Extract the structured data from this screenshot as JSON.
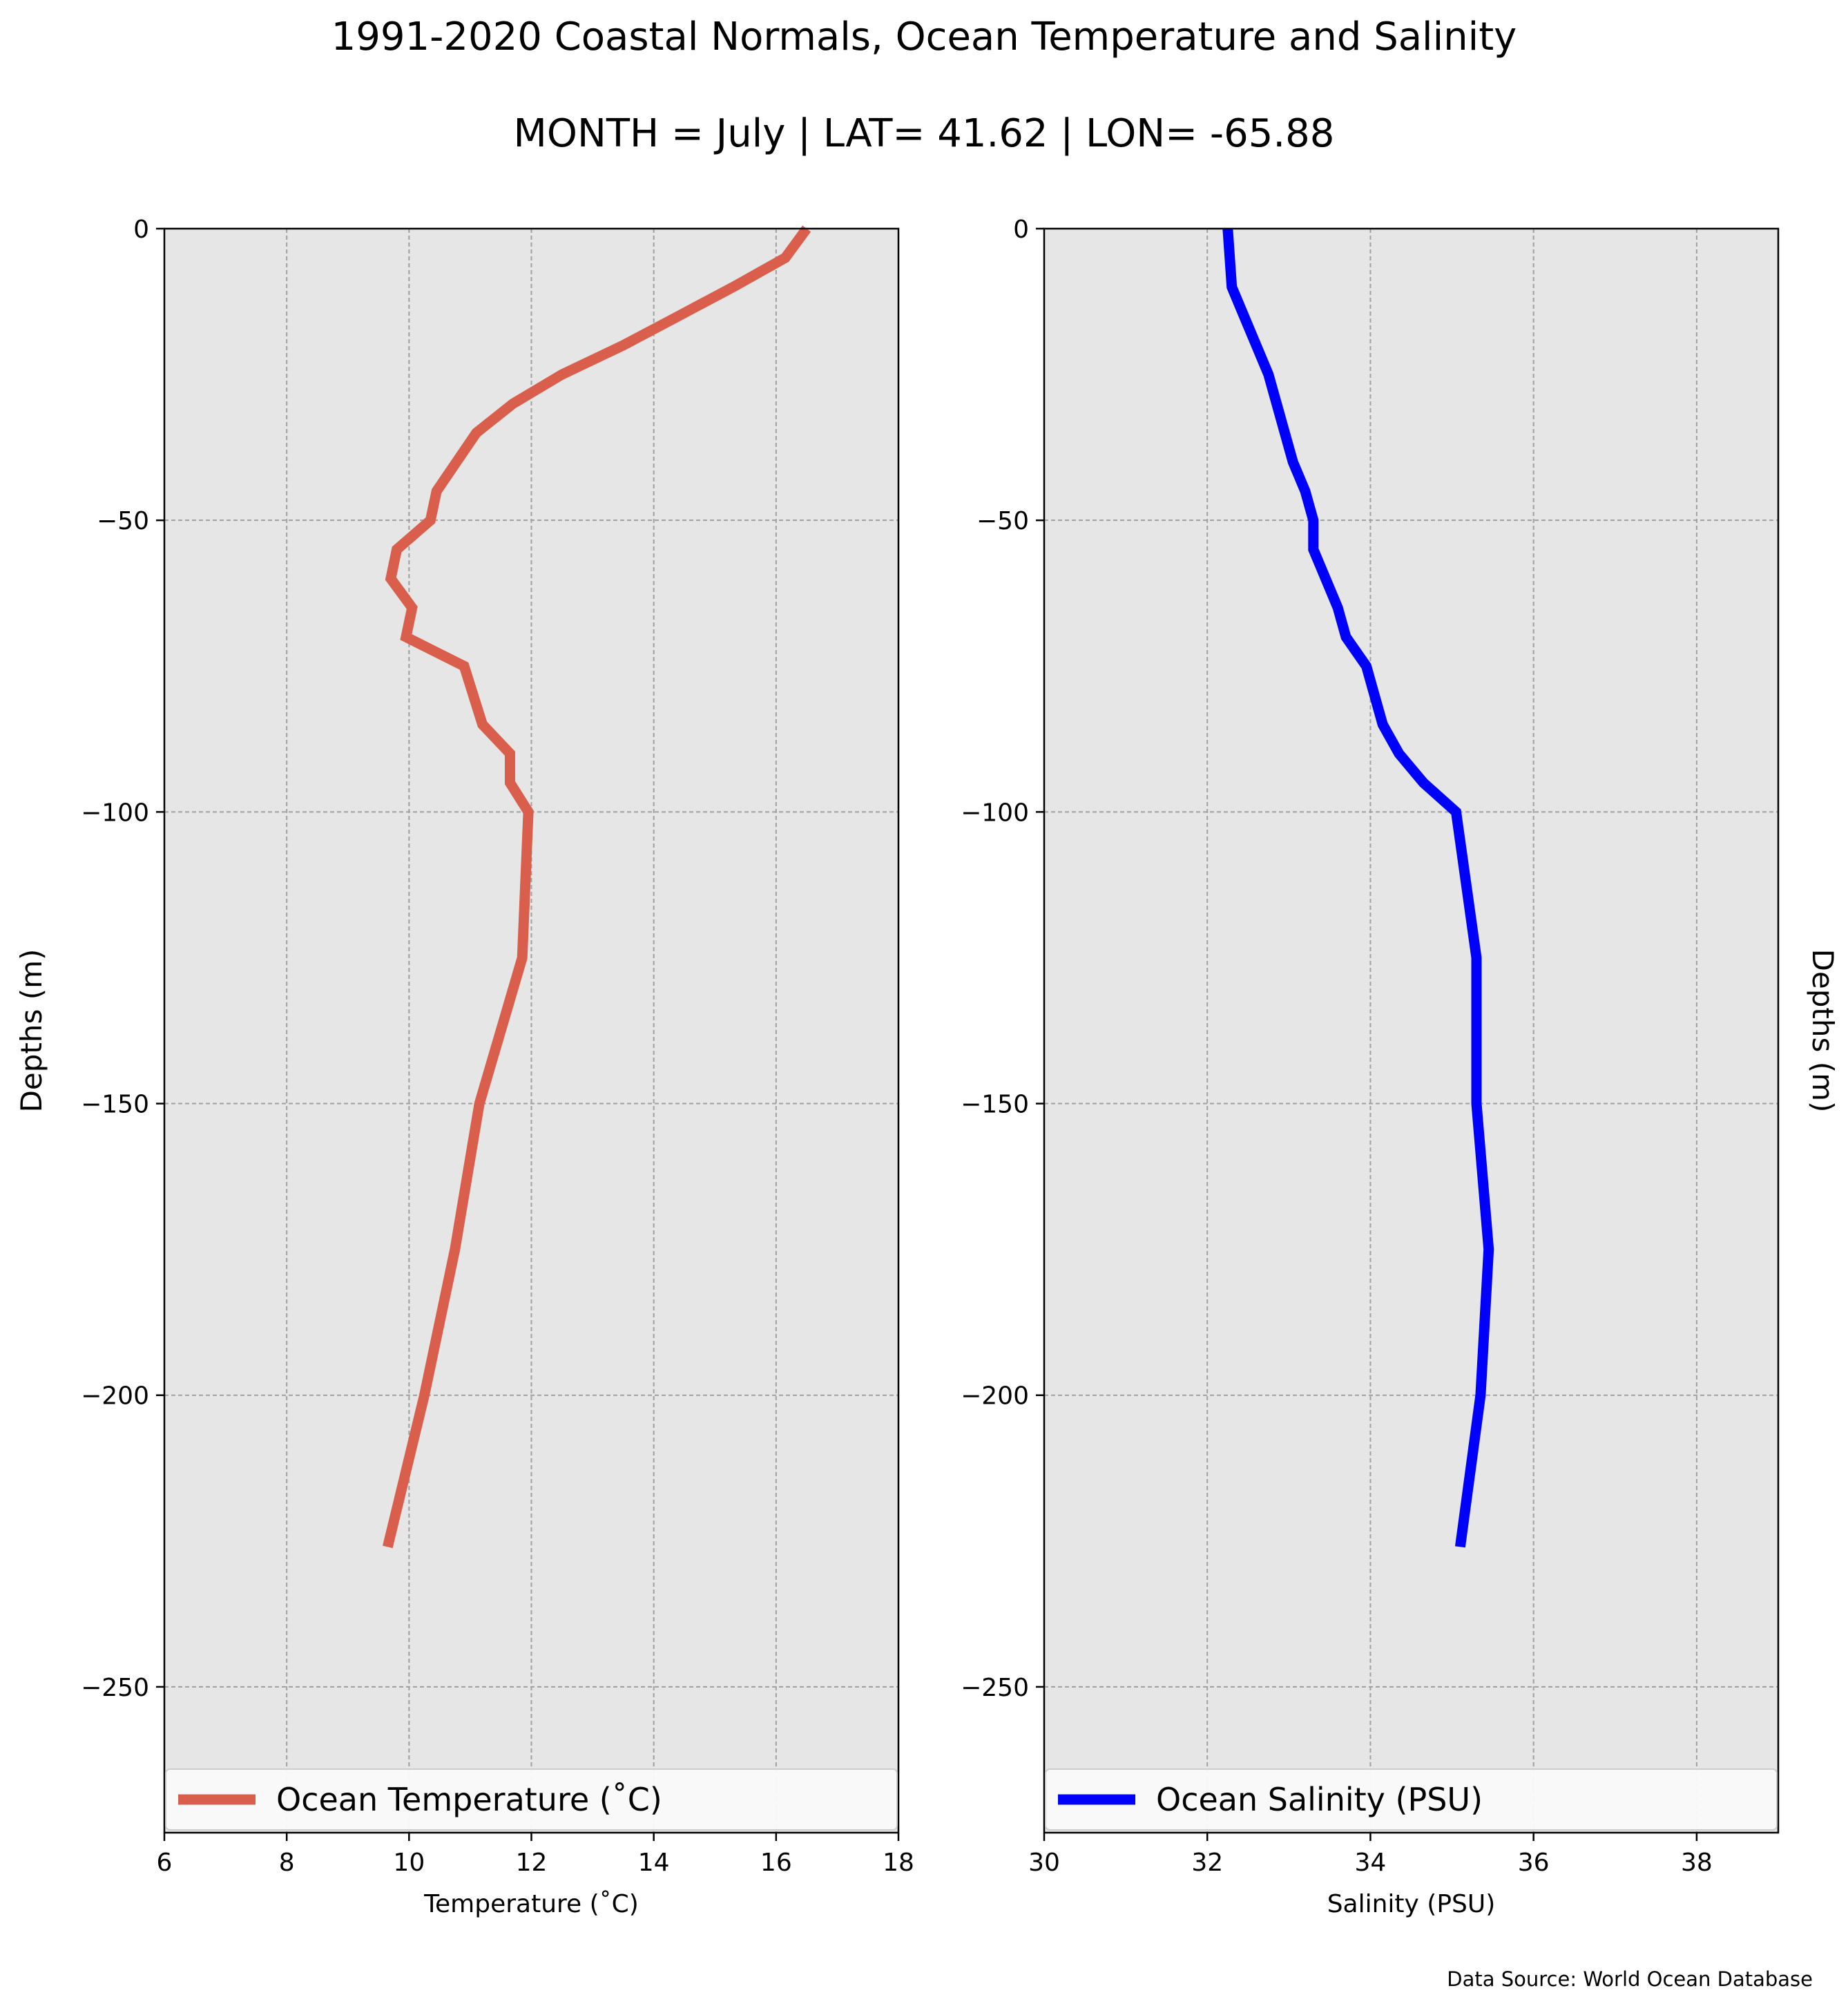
{
  "title": "1991-2020 Coastal Normals, Ocean Temperature and Salinity",
  "subtitle": "MONTH = July | LAT= 41.62 | LON= -65.88",
  "source_note": "Data Source: World Ocean Database",
  "colors": {
    "temperature": "#d95f4c",
    "salinity": "#0000ff",
    "panel_bg": "#e6e6e6",
    "grid": "#a0a0a0"
  },
  "chart_data": [
    {
      "type": "line",
      "xlabel": "Temperature ($^\\circ$C)",
      "ylabel": "Depths (m)",
      "ylabel_side": "left",
      "xlim": [
        6,
        18
      ],
      "ylim": [
        -275,
        0
      ],
      "xticks": [
        6,
        8,
        10,
        12,
        14,
        16,
        18
      ],
      "yticks": [
        0,
        -50,
        -100,
        -150,
        -200,
        -250
      ],
      "grid": true,
      "legend_position": "lower-center",
      "series": [
        {
          "name": "Ocean Temperature ($^\\circ$C)",
          "color": "#d95f4c",
          "x": [
            16.5,
            16.15,
            15.3,
            14.4,
            13.5,
            12.5,
            11.7,
            11.1,
            10.45,
            10.35,
            9.8,
            9.7,
            10.05,
            9.95,
            10.9,
            11.2,
            11.65,
            11.65,
            11.95,
            11.85,
            11.15,
            10.75,
            10.25,
            9.65
          ],
          "y": [
            0,
            -5,
            -10,
            -15,
            -20,
            -25,
            -30,
            -35,
            -45,
            -50,
            -55,
            -60,
            -65,
            -70,
            -75,
            -85,
            -90,
            -95,
            -100,
            -125,
            -150,
            -175,
            -200,
            -226
          ]
        }
      ]
    },
    {
      "type": "line",
      "xlabel": "Salinity (PSU)",
      "ylabel": "Depths (m)",
      "ylabel_side": "right",
      "xlim": [
        30,
        39
      ],
      "ylim": [
        -275,
        0
      ],
      "xticks": [
        30,
        32,
        34,
        36,
        38
      ],
      "yticks": [
        0,
        -50,
        -100,
        -150,
        -200,
        -250
      ],
      "grid": true,
      "legend_position": "lower-center",
      "series": [
        {
          "name": "Ocean Salinity (PSU)",
          "color": "#0000ff",
          "x": [
            32.25,
            32.3,
            32.45,
            32.6,
            32.75,
            32.85,
            32.95,
            33.05,
            33.2,
            33.3,
            33.3,
            33.45,
            33.6,
            33.7,
            33.95,
            34.15,
            34.35,
            34.65,
            35.05,
            35.3,
            35.3,
            35.45,
            35.35,
            35.1
          ],
          "y": [
            0,
            -10,
            -15,
            -20,
            -25,
            -30,
            -35,
            -40,
            -45,
            -50,
            -55,
            -60,
            -65,
            -70,
            -75,
            -85,
            -90,
            -95,
            -100,
            -125,
            -150,
            -175,
            -200,
            -226
          ]
        }
      ]
    }
  ]
}
